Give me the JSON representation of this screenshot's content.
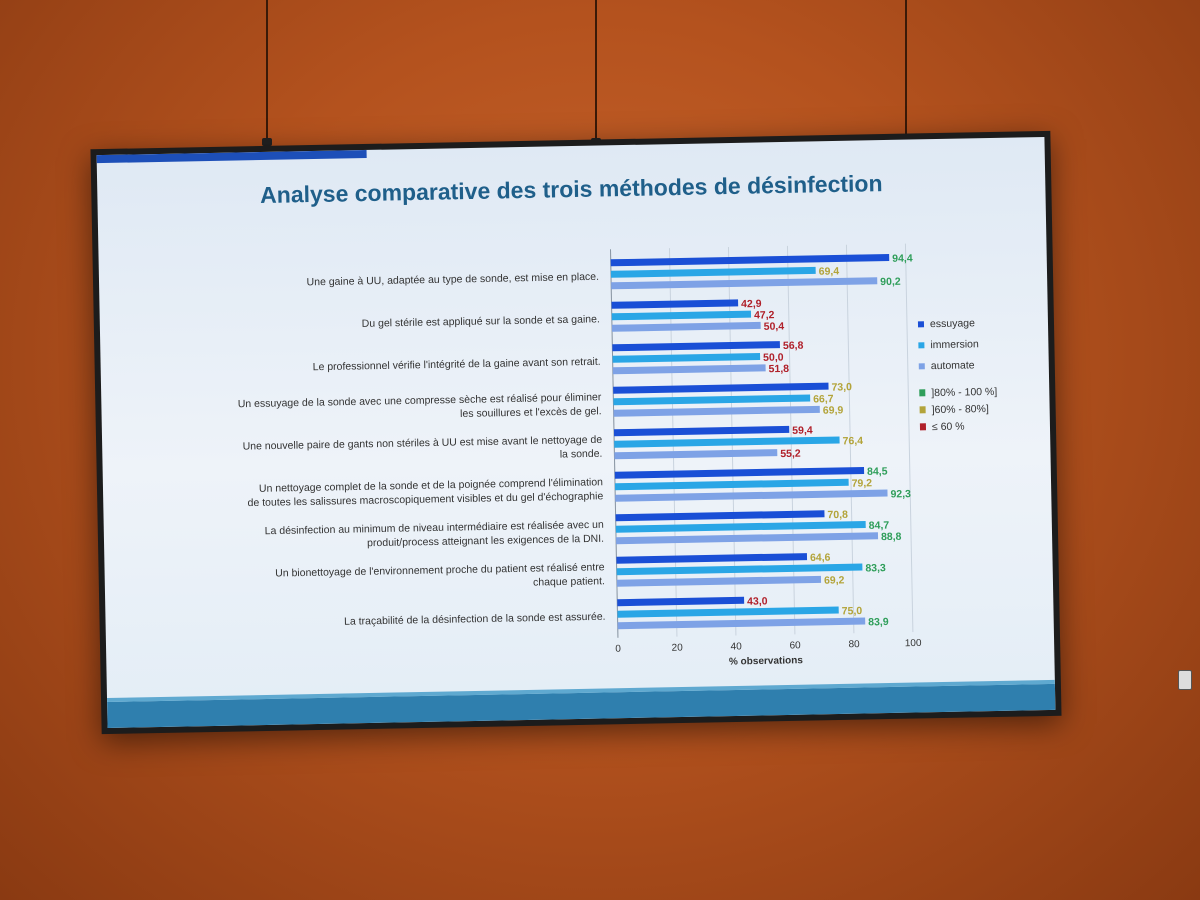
{
  "title": "Analyse comparative des trois  méthodes de désinfection",
  "colors": {
    "essuyage": "#1a4fd6",
    "immersion": "#2aa6e6",
    "automate": "#7ea2e6",
    "band_high": "#2f9e5a",
    "band_mid": "#b3a43a",
    "band_low": "#b0202a"
  },
  "chart_data": {
    "type": "bar",
    "orientation": "horizontal",
    "categories": [
      [
        "Une gaine à UU, adaptée au type de sonde, est mise en place."
      ],
      [
        "Du gel stérile est appliqué sur la sonde et sa gaine."
      ],
      [
        "Le professionnel vérifie l'intégrité de la gaine avant son retrait."
      ],
      [
        "Un essuyage de la sonde avec une compresse sèche est réalisé pour éliminer",
        "les souillures et l'excès de gel."
      ],
      [
        "Une nouvelle paire de gants non stériles à UU est mise avant le nettoyage de",
        "la sonde."
      ],
      [
        "Un nettoyage complet de la sonde et de la poignée comprend l'élimination",
        "de toutes les salissures macroscopiquement visibles et du gel d'échographie"
      ],
      [
        "La désinfection au minimum de niveau intermédiaire est réalisée avec un",
        "produit/process atteignant les exigences de la DNI."
      ],
      [
        "Un bionettoyage de l'environnement proche du patient est réalisé entre",
        "chaque patient."
      ],
      [
        "La traçabilité de la désinfection de la sonde est assurée."
      ]
    ],
    "series": [
      {
        "name": "essuyage",
        "values": [
          94.4,
          42.9,
          56.8,
          73.0,
          59.4,
          84.5,
          70.8,
          64.6,
          43.0
        ]
      },
      {
        "name": "immersion",
        "values": [
          69.4,
          47.2,
          50.0,
          66.7,
          76.4,
          79.2,
          84.7,
          83.3,
          75.0
        ]
      },
      {
        "name": "automate",
        "values": [
          90.2,
          50.4,
          51.8,
          69.9,
          55.2,
          92.3,
          88.8,
          69.2,
          83.9
        ]
      }
    ],
    "value_labels": [
      [
        "94,4",
        "69,4",
        "90,2"
      ],
      [
        "42,9",
        "47,2",
        "50,4"
      ],
      [
        "56,8",
        "50,0",
        "51,8"
      ],
      [
        "73,0",
        "66,7",
        "69,9"
      ],
      [
        "59,4",
        "76,4",
        "55,2"
      ],
      [
        "84,5",
        "79,2",
        "92,3"
      ],
      [
        "70,8",
        "84,7",
        "88,8"
      ],
      [
        "64,6",
        "83,3",
        "69,2"
      ],
      [
        "43,0",
        "75,0",
        "83,9"
      ]
    ],
    "xlabel": "% observations",
    "xlim": [
      0,
      100
    ],
    "xticks": [
      "0",
      "20",
      "40",
      "60",
      "80",
      "100"
    ],
    "xtick_values": [
      0,
      20,
      40,
      60,
      80,
      100
    ],
    "value_color_bands": [
      {
        "label": "]80% - 100 %]",
        "min": 80,
        "max": 100,
        "color": "#2f9e5a"
      },
      {
        "label": "]60% - 80%]",
        "min": 60,
        "max": 80,
        "color": "#b3a43a"
      },
      {
        "label": "≤ 60 %",
        "min": 0,
        "max": 60,
        "color": "#b0202a"
      }
    ],
    "legend_position": "right",
    "grid": true
  }
}
